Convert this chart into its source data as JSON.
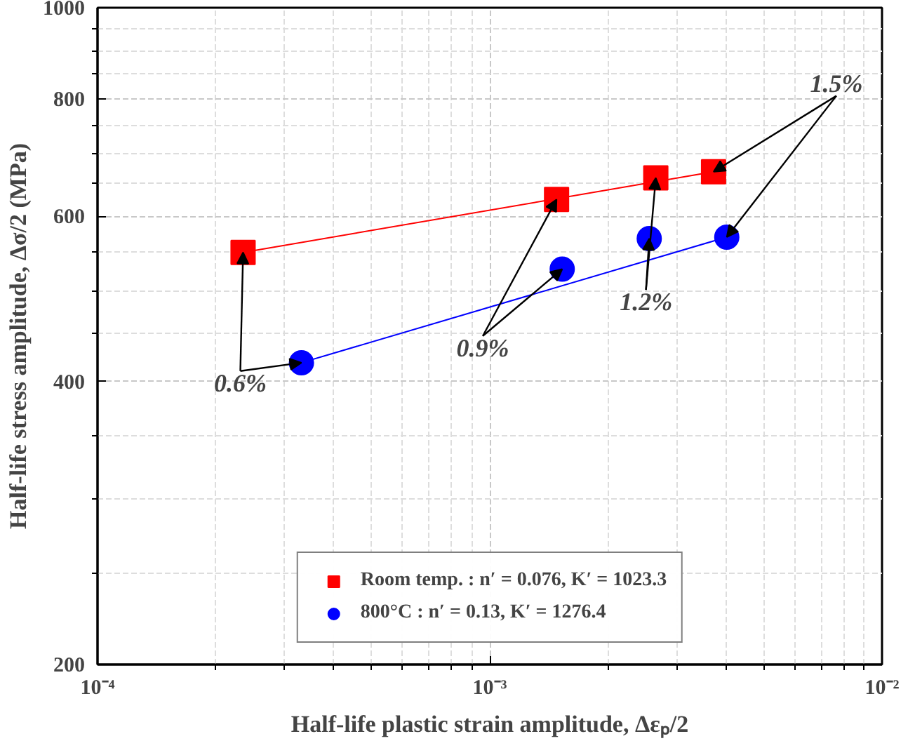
{
  "chart_data": {
    "type": "scatter",
    "log": "xy",
    "grid": true,
    "legend": "bottom",
    "xlabel": "Half-life plastic strain amplitude, Δεₚ/2",
    "ylabel": "Half-life stress amplitude, Δσ/2 (MPa)",
    "xlim": [
      0.0001,
      0.01
    ],
    "ylim": [
      200,
      1000
    ],
    "xticks": [
      {
        "value": 0.0001,
        "label": "10⁻⁴"
      },
      {
        "value": 0.001,
        "label": "10⁻³"
      },
      {
        "value": 0.01,
        "label": "10⁻²"
      }
    ],
    "yticks": [
      200,
      400,
      600,
      800,
      1000
    ],
    "series": [
      {
        "name": "Room temp. : n′ = 0.076, K′ = 1023.3",
        "color": "#ff0000",
        "marker": "square",
        "x": [
          0.000235,
          0.00148,
          0.00265,
          0.00372
        ],
        "values": [
          549,
          625,
          659,
          669
        ]
      },
      {
        "name": "800°C : n′ = 0.13, K′ = 1276.4",
        "color": "#0000ff",
        "marker": "circle",
        "x": [
          0.000331,
          0.00153,
          0.00255,
          0.00402
        ],
        "values": [
          419,
          527,
          568,
          570
        ]
      },
      {
        "type": "line",
        "color": "#ff0000",
        "x": [
          0.000235,
          0.00372
        ],
        "values": [
          549,
          669
        ]
      },
      {
        "type": "line",
        "color": "#0000ff",
        "x": [
          0.000331,
          0.00402
        ],
        "values": [
          419,
          570
        ]
      }
    ],
    "annotations": [
      {
        "text": "0.6%",
        "x": 0.000235,
        "y": 549
      },
      {
        "text": "0.9%",
        "x": 0.00148,
        "y": 625
      },
      {
        "text": "1.2%",
        "x": 0.00265,
        "y": 659
      },
      {
        "text": "1.5%",
        "x": 0.00372,
        "y": 669
      }
    ]
  }
}
